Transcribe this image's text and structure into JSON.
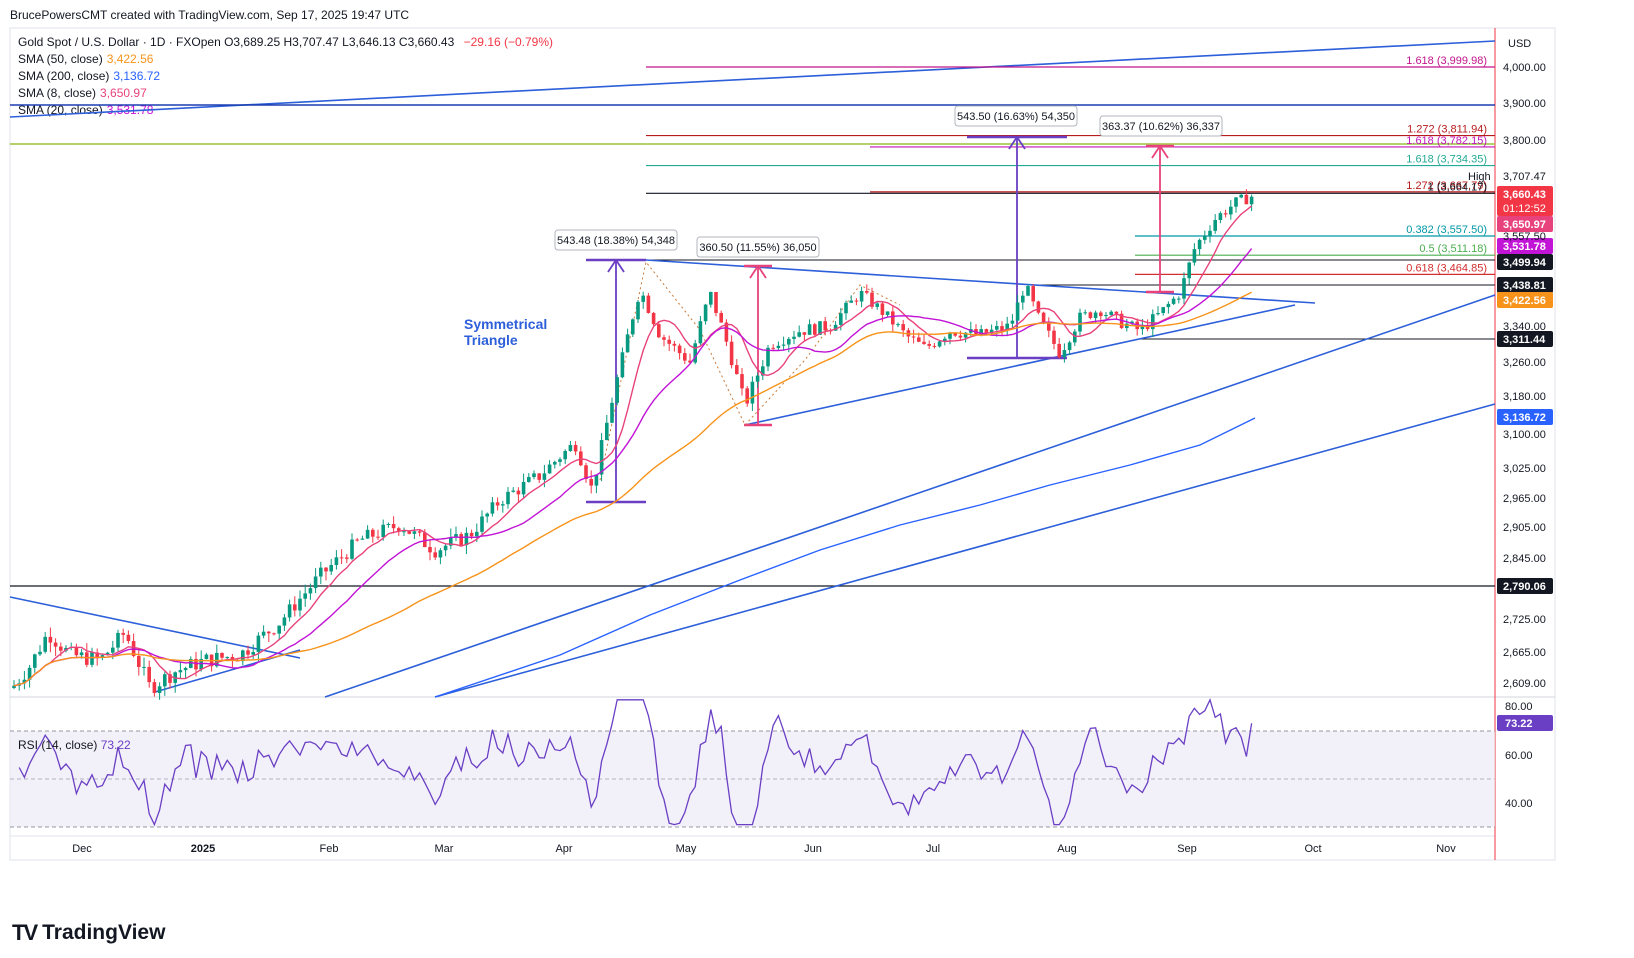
{
  "header": {
    "credit": "BrucePowersCMT created with TradingView.com, Sep 17, 2025 19:47 UTC"
  },
  "legend": {
    "title": "Gold Spot / U.S. Dollar · 1D · FXOpen",
    "ohlc": "O3,689.25 H3,707.47 L3,646.13 C3,660.43",
    "change": "−29.16 (−0.79%)",
    "sma50_label": "SMA (50, close)",
    "sma50_value": "3,422.56",
    "sma200_label": "SMA (200, close)",
    "sma200_value": "3,136.72",
    "sma8_label": "SMA (8, close)",
    "sma8_value": "3,650.97",
    "sma20_label": "SMA (20, close)",
    "sma20_value": "3,531.78"
  },
  "rsi_legend": {
    "label": "RSI (14, close)",
    "value": "73.22"
  },
  "brand": {
    "name": "TradingView",
    "logo": "TV"
  },
  "colors": {
    "up": "#089981",
    "down": "#f23645",
    "sma50": "#f7931a",
    "sma200": "#2962ff",
    "sma8": "#e8427c",
    "sma20": "#c214d6",
    "trend": "#2c5fd9",
    "rsi": "#6a3fc4"
  },
  "chart_data": {
    "type": "candlestick",
    "symbol": "XAUUSD",
    "currency_label": "USD",
    "y_axis_ticks": [
      "4,000.00",
      "3,900.00",
      "3,800.00",
      "3,707.47",
      "3,557.50",
      "3,340.00",
      "3,260.00",
      "3,180.00",
      "3,100.00",
      "3,025.00",
      "2,965.00",
      "2,905.00",
      "2,845.00",
      "2,725.00",
      "2,665.00",
      "2,609.00"
    ],
    "x_axis_ticks": [
      "Dec",
      "2025",
      "Feb",
      "Mar",
      "Apr",
      "May",
      "Jun",
      "Jul",
      "Aug",
      "Sep",
      "Oct",
      "Nov"
    ],
    "price_tags": [
      {
        "label": "3,660.43",
        "sub": "01:12:52",
        "color": "#f23645"
      },
      {
        "label": "3,650.97",
        "color": "#e8427c"
      },
      {
        "label": "3,531.78",
        "color": "#c214d6"
      },
      {
        "label": "3,499.94",
        "color": "#131722"
      },
      {
        "label": "3,438.81",
        "color": "#131722"
      },
      {
        "label": "3,422.56",
        "color": "#f7931a"
      },
      {
        "label": "3,311.44",
        "color": "#131722"
      },
      {
        "label": "3,136.72",
        "color": "#2962ff"
      },
      {
        "label": "2,790.06",
        "color": "#131722"
      }
    ],
    "high_label": "High",
    "high_value": "3,707.47",
    "fib_levels": [
      {
        "label": "1.618 (3,999.98)",
        "price": 3999.98,
        "color": "#c2148c"
      },
      {
        "label": "1.272 (3,811.94)",
        "price": 3811.94,
        "color": "#b71c1c"
      },
      {
        "label": "1.618 (3,782.15)",
        "price": 3782.15,
        "color": "#c214b8"
      },
      {
        "label": "1.618 (3,734.35)",
        "price": 3734.35,
        "color": "#22ab94"
      },
      {
        "label": "1.272 (3,667.79)",
        "price": 3667.79,
        "color": "#b71c1c"
      },
      {
        "label": "1 (3,664.17)",
        "price": 3664.17,
        "color": "#131722"
      },
      {
        "label": "0.382 (3,557.50)",
        "price": 3557.5,
        "color": "#0097a7"
      },
      {
        "label": "0.5 (3,511.18)",
        "price": 3511.18,
        "color": "#4caf50"
      },
      {
        "label": "0.618 (3,464.85)",
        "price": 3464.85,
        "color": "#d32f2f"
      }
    ],
    "measurements": [
      {
        "label": "543.48 (18.38%) 54,348",
        "color": "#6a3fc4"
      },
      {
        "label": "360.50 (11.55%) 36,050",
        "color": "#e8427c"
      },
      {
        "label": "543.50 (16.63%) 54,350",
        "color": "#6a3fc4"
      },
      {
        "label": "363.37 (10.62%) 36,337",
        "color": "#e8427c"
      }
    ],
    "annotation": {
      "line1": "Symmetrical",
      "line2": "Triangle"
    },
    "rsi": {
      "period": 14,
      "last": 73.22,
      "ticks": [
        "80.00",
        "60.00",
        "40.00"
      ],
      "overbought": 70,
      "oversold": 30,
      "range": [
        20,
        90
      ]
    }
  }
}
